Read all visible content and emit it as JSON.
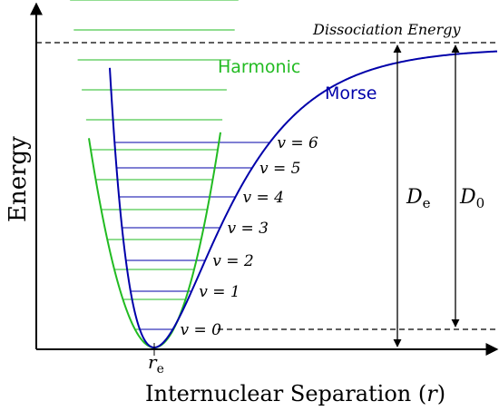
{
  "chart_data": {
    "type": "line",
    "title": "",
    "xlabel": "Internuclear Separation (r)",
    "ylabel": "Energy",
    "xtick_labels": [
      "r_e"
    ],
    "series": [
      {
        "name": "Harmonic",
        "color": "#22bb22"
      },
      {
        "name": "Morse",
        "color": "#0000aa"
      }
    ],
    "annotations": {
      "dissociation": "Dissociation Energy",
      "De": "D_e",
      "D0": "D_0"
    },
    "morse_levels": [
      {
        "label": "v = 0",
        "y": 0.0
      },
      {
        "label": "v = 1",
        "y": 1.0
      },
      {
        "label": "v = 2",
        "y": 2.0
      },
      {
        "label": "v = 3",
        "y": 3.0
      },
      {
        "label": "v = 4",
        "y": 4.0
      },
      {
        "label": "v = 5",
        "y": 5.0
      },
      {
        "label": "v = 6",
        "y": 6.0
      }
    ],
    "harmonic_levels_count": 12,
    "dissociation_level": 1.0,
    "zero_point_level": 0.0
  }
}
